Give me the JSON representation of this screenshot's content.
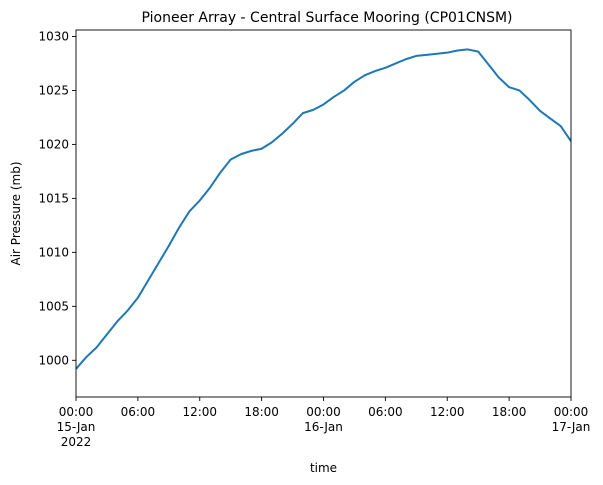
{
  "chart_data": {
    "type": "line",
    "title": "Pioneer Array - Central Surface Mooring (CP01CNSM)",
    "xlabel": "time",
    "ylabel": "Air Pressure (mb)",
    "xlim": [
      "2022-01-15T00:00",
      "2022-01-17T00:00"
    ],
    "ylim": [
      996.6,
      1030.6
    ],
    "grid": false,
    "legend": "none",
    "line_color": "#1f77b4",
    "y_ticks": [
      1000,
      1005,
      1010,
      1015,
      1020,
      1025,
      1030
    ],
    "x_ticks": [
      {
        "t": "2022-01-15T00:00",
        "lines": [
          "00:00",
          "15-Jan",
          "2022"
        ]
      },
      {
        "t": "2022-01-15T06:00",
        "lines": [
          "06:00"
        ]
      },
      {
        "t": "2022-01-15T12:00",
        "lines": [
          "12:00"
        ]
      },
      {
        "t": "2022-01-15T18:00",
        "lines": [
          "18:00"
        ]
      },
      {
        "t": "2022-01-16T00:00",
        "lines": [
          "00:00",
          "16-Jan"
        ]
      },
      {
        "t": "2022-01-16T06:00",
        "lines": [
          "06:00"
        ]
      },
      {
        "t": "2022-01-16T12:00",
        "lines": [
          "12:00"
        ]
      },
      {
        "t": "2022-01-16T18:00",
        "lines": [
          "18:00"
        ]
      },
      {
        "t": "2022-01-17T00:00",
        "lines": [
          "00:00",
          "17-Jan"
        ]
      }
    ],
    "series": [
      {
        "x": [
          "2022-01-15T00:00",
          "2022-01-15T01:00",
          "2022-01-15T02:00",
          "2022-01-15T03:00",
          "2022-01-15T04:00",
          "2022-01-15T05:00",
          "2022-01-15T06:00",
          "2022-01-15T07:00",
          "2022-01-15T08:00",
          "2022-01-15T09:00",
          "2022-01-15T10:00",
          "2022-01-15T11:00",
          "2022-01-15T12:00",
          "2022-01-15T13:00",
          "2022-01-15T14:00",
          "2022-01-15T15:00",
          "2022-01-15T16:00",
          "2022-01-15T17:00",
          "2022-01-15T18:00",
          "2022-01-15T19:00",
          "2022-01-15T20:00",
          "2022-01-15T21:00",
          "2022-01-15T22:00",
          "2022-01-15T23:00",
          "2022-01-16T00:00",
          "2022-01-16T01:00",
          "2022-01-16T02:00",
          "2022-01-16T03:00",
          "2022-01-16T04:00",
          "2022-01-16T05:00",
          "2022-01-16T06:00",
          "2022-01-16T07:00",
          "2022-01-16T08:00",
          "2022-01-16T09:00",
          "2022-01-16T10:00",
          "2022-01-16T11:00",
          "2022-01-16T12:00",
          "2022-01-16T13:00",
          "2022-01-16T14:00",
          "2022-01-16T15:00",
          "2022-01-16T16:00",
          "2022-01-16T17:00",
          "2022-01-16T18:00",
          "2022-01-16T19:00",
          "2022-01-16T20:00",
          "2022-01-16T21:00",
          "2022-01-16T22:00",
          "2022-01-16T23:00",
          "2022-01-17T00:00"
        ],
        "values": [
          999.2,
          1000.3,
          1001.2,
          1002.4,
          1003.6,
          1004.6,
          1005.8,
          1007.4,
          1009.0,
          1010.6,
          1012.3,
          1013.8,
          1014.8,
          1016.0,
          1017.4,
          1018.6,
          1019.1,
          1019.4,
          1019.6,
          1020.2,
          1021.0,
          1021.9,
          1022.9,
          1023.2,
          1023.7,
          1024.4,
          1025.0,
          1025.8,
          1026.4,
          1026.8,
          1027.1,
          1027.5,
          1027.9,
          1028.2,
          1028.3,
          1028.4,
          1028.5,
          1028.7,
          1028.8,
          1028.6,
          1027.4,
          1026.2,
          1025.3,
          1025.0,
          1024.1,
          1023.1,
          1022.4,
          1021.7,
          1020.3
        ]
      }
    ]
  }
}
